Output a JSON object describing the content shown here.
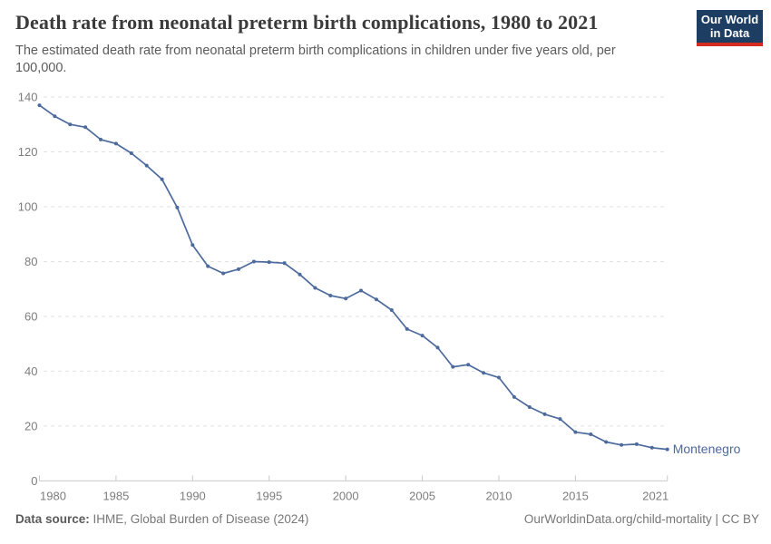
{
  "header": {
    "title": "Death rate from neonatal preterm birth complications, 1980 to 2021",
    "subtitle": "The estimated death rate from neonatal preterm birth complications in children under five years old, per 100,000."
  },
  "logo": {
    "line1": "Our World",
    "line2": "in Data",
    "bg_color": "#1d3d63",
    "accent_color": "#d42b21"
  },
  "chart_data": {
    "type": "line",
    "title": "Death rate from neonatal preterm birth complications, 1980 to 2021",
    "xlabel": "",
    "ylabel": "",
    "ylim": [
      0,
      140
    ],
    "yticks": [
      0,
      20,
      40,
      60,
      80,
      100,
      120,
      140
    ],
    "xticks": [
      1980,
      1985,
      1990,
      1995,
      2000,
      2005,
      2010,
      2015,
      2021
    ],
    "grid": "horizontal-dashed",
    "legend_position": "end-of-line-label",
    "series": [
      {
        "name": "Montenegro",
        "color": "#4C6A9C",
        "x": [
          1980,
          1981,
          1982,
          1983,
          1984,
          1985,
          1986,
          1987,
          1988,
          1989,
          1990,
          1991,
          1992,
          1993,
          1994,
          1995,
          1996,
          1997,
          1998,
          1999,
          2000,
          2001,
          2002,
          2003,
          2004,
          2005,
          2006,
          2007,
          2008,
          2009,
          2010,
          2011,
          2012,
          2013,
          2014,
          2015,
          2016,
          2017,
          2018,
          2019,
          2020,
          2021
        ],
        "values": [
          137,
          133,
          130,
          129,
          124.5,
          123,
          119.5,
          115,
          110,
          99.7,
          86,
          78.3,
          75.7,
          77.2,
          80,
          79.8,
          79.4,
          75.3,
          70.4,
          67.6,
          66.5,
          69.4,
          66.2,
          62.3,
          55.4,
          53,
          48.6,
          41.6,
          42.4,
          39.4,
          37.7,
          30.6,
          26.9,
          24.3,
          22.6,
          17.8,
          17,
          14.2,
          13.1,
          13.4,
          12.1,
          11.5
        ]
      }
    ],
    "entity_label": "Montenegro",
    "colors": {
      "line": "#4C6A9C",
      "gridline": "#e2e2e2",
      "axis_line": "#c9c9c9",
      "tick_label": "#7d7d7d"
    }
  },
  "footer": {
    "source_label": "Data source:",
    "source_text": " IHME, Global Burden of Disease (2024)",
    "link_text": "OurWorldinData.org/child-mortality",
    "license_text": " | CC BY"
  }
}
